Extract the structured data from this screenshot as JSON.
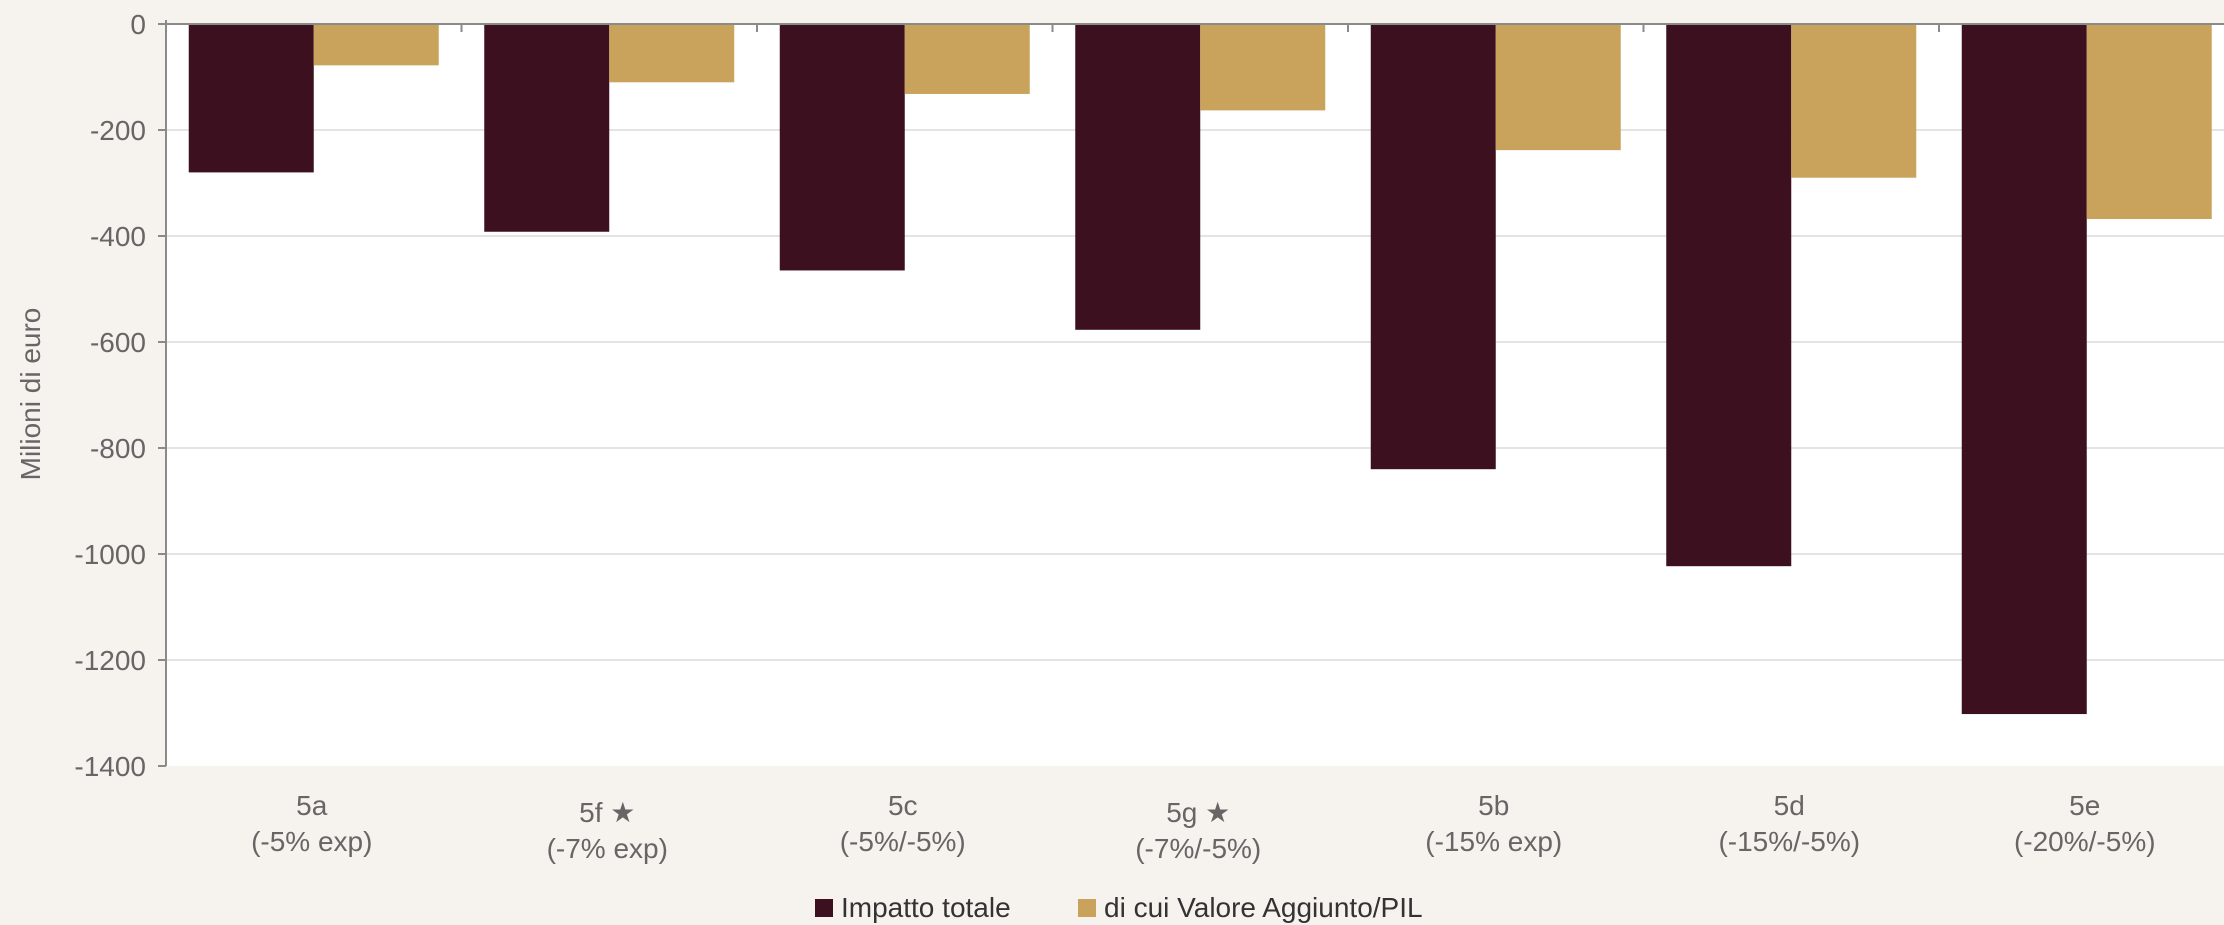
{
  "chart_data": {
    "type": "bar",
    "title": "",
    "xlabel": "",
    "ylabel": "Milioni di euro",
    "ylim": [
      -1400,
      0
    ],
    "yticks": [
      0,
      -200,
      -400,
      -600,
      -800,
      -1000,
      -1200,
      -1400
    ],
    "ytick_labels": [
      "0",
      "-200",
      "-400",
      "-600",
      "-800",
      "-1000",
      "-1200",
      "-1400"
    ],
    "grid": true,
    "legend_position": "bottom",
    "categories": [
      {
        "line1": "5a",
        "line2": "(-5% exp)"
      },
      {
        "line1": "5f ★",
        "line2": "(-7% exp)"
      },
      {
        "line1": "5c",
        "line2": "(-5%/-5%)"
      },
      {
        "line1": "5g ★",
        "line2": "(-7%/-5%)"
      },
      {
        "line1": "5b",
        "line2": "(-15% exp)"
      },
      {
        "line1": "5d",
        "line2": "(-15%/-5%)"
      },
      {
        "line1": "5e",
        "line2": "(-20%/-5%)"
      }
    ],
    "series": [
      {
        "name": "Impatto totale",
        "color": "#3d1020",
        "values": [
          -280,
          -392,
          -465,
          -577,
          -840,
          -1023,
          -1302
        ]
      },
      {
        "name": "di cui Valore Aggiunto/PIL",
        "color": "#c9a35c",
        "values": [
          -78,
          -110,
          -132,
          -163,
          -238,
          -290,
          -368
        ]
      }
    ]
  }
}
